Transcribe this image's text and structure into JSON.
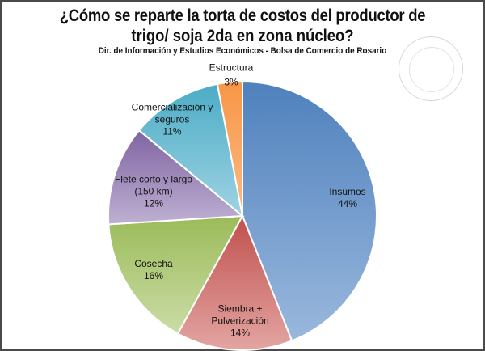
{
  "chart_data": {
    "type": "pie",
    "title": "¿Cómo se reparte la torta de costos del productor de trigo/ soja 2da en zona núcleo?",
    "title_lines": [
      "¿Cómo se reparte la torta de costos del productor de",
      "trigo/ soja 2da en zona núcleo?"
    ],
    "subtitle": "Dir. de Información y Estudios Económicos - Bolsa de Comercio de Rosario",
    "start": "12 o'clock, clockwise",
    "slices": [
      {
        "label": "Insumos",
        "label_lines": [
          "Insumos"
        ],
        "value": 44,
        "value_label": "44%",
        "color": "#4f81bd",
        "color_light": "#9ab8dd"
      },
      {
        "label": "Siembra + Pulverización",
        "label_lines": [
          "Siembra +",
          "Pulverización"
        ],
        "value": 14,
        "value_label": "14%",
        "color": "#c0504d",
        "color_light": "#e3a5a2"
      },
      {
        "label": "Cosecha",
        "label_lines": [
          "Cosecha"
        ],
        "value": 16,
        "value_label": "16%",
        "color": "#9bbb59",
        "color_light": "#cbdca6"
      },
      {
        "label": "Flete corto y largo (150 km)",
        "label_lines": [
          "Flete corto  y largo",
          "(150 km)"
        ],
        "value": 12,
        "value_label": "12%",
        "color": "#8064a2",
        "color_light": "#beb0d2"
      },
      {
        "label": "Comercialización y seguros",
        "label_lines": [
          "Comercialización  y",
          "seguros"
        ],
        "value": 11,
        "value_label": "11%",
        "color": "#4bacc6",
        "color_light": "#9fd3e3"
      },
      {
        "label": "Estructura",
        "label_lines": [
          "Estructura"
        ],
        "value": 3,
        "value_label": "3%",
        "color": "#f79646",
        "color_light": "#fbbb84"
      }
    ]
  },
  "watermark": "BOLSA DE COMERCIO DE ROSARIO"
}
